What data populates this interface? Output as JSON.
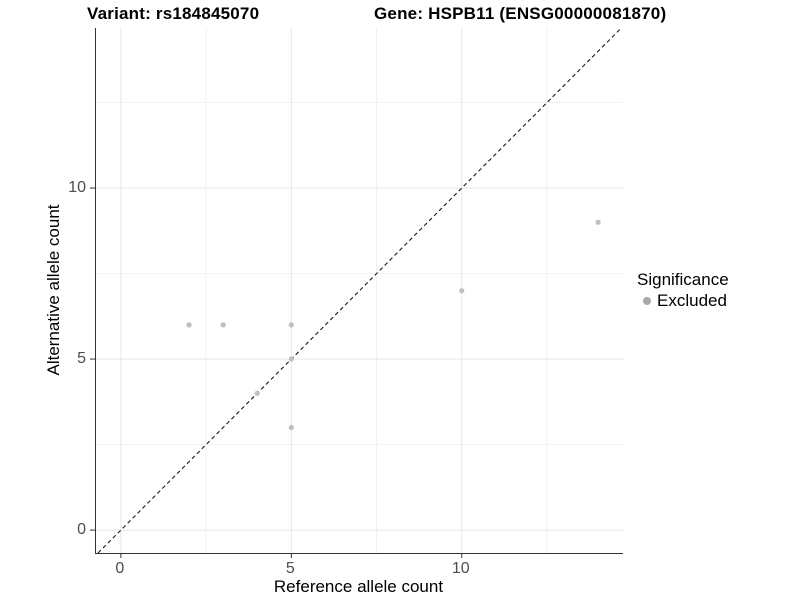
{
  "titles": {
    "variant": "Variant: rs184845070",
    "gene": "Gene: HSPB11 (ENSG00000081870)"
  },
  "legend": {
    "title": "Significance",
    "items": [
      {
        "label": "Excluded",
        "color": "#a9a9a9"
      }
    ]
  },
  "colors": {
    "point": "#bfbfbf",
    "axis_line": "#333333",
    "tick_label": "#4d4d4d",
    "grid_major": "#e7e7e7",
    "grid_minor": "#f2f2f2",
    "reference_line": "#1a1a1a",
    "background": "#ffffff"
  },
  "chart_data": {
    "type": "scatter",
    "title_left": "Variant: rs184845070",
    "title_right": "Gene: HSPB11 (ENSG00000081870)",
    "xlabel": "Reference allele count",
    "ylabel": "Alternative allele count",
    "series": [
      {
        "name": "Excluded",
        "color": "#bfbfbf",
        "points": [
          [
            2,
            6
          ],
          [
            3,
            6
          ],
          [
            5,
            6
          ],
          [
            5,
            5
          ],
          [
            4,
            4
          ],
          [
            5,
            3
          ],
          [
            10,
            7
          ],
          [
            14,
            9
          ]
        ]
      }
    ],
    "reference_line": {
      "type": "identity",
      "slope": 1,
      "intercept": 0,
      "style": "dashed"
    },
    "x_ticks": [
      0,
      5,
      10
    ],
    "y_ticks": [
      0,
      5,
      10
    ],
    "x_minor_ticks": [
      2.5,
      7.5,
      12.5
    ],
    "y_minor_ticks": [
      2.5,
      7.5,
      12.5
    ],
    "xlim": [
      -0.73,
      14.73
    ],
    "ylim": [
      -0.67,
      14.68
    ],
    "grid": true,
    "legend_position": "right",
    "legend_title": "Significance"
  }
}
